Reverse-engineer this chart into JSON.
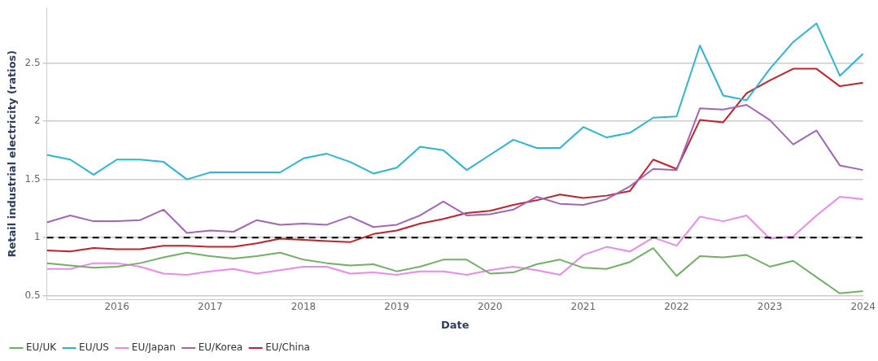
{
  "chart_data": {
    "type": "line",
    "xlabel": "Date",
    "ylabel": "Retail industrial electricity (ratios)",
    "x": [
      "2015-04",
      "2015-07",
      "2015-10",
      "2016-01",
      "2016-04",
      "2016-07",
      "2016-10",
      "2017-01",
      "2017-04",
      "2017-07",
      "2017-10",
      "2018-01",
      "2018-04",
      "2018-07",
      "2018-10",
      "2019-01",
      "2019-04",
      "2019-07",
      "2019-10",
      "2020-01",
      "2020-04",
      "2020-07",
      "2020-10",
      "2021-01",
      "2021-04",
      "2021-07",
      "2021-10",
      "2022-01",
      "2022-04",
      "2022-07",
      "2022-10",
      "2023-01",
      "2023-04",
      "2023-07",
      "2023-10",
      "2024-01"
    ],
    "series": [
      {
        "name": "EU/UK",
        "color": "#72b066",
        "values": [
          0.78,
          0.76,
          0.74,
          0.75,
          0.78,
          0.83,
          0.87,
          0.84,
          0.82,
          0.84,
          0.87,
          0.81,
          0.78,
          0.76,
          0.77,
          0.71,
          0.75,
          0.81,
          0.81,
          0.69,
          0.7,
          0.77,
          0.81,
          0.74,
          0.73,
          0.79,
          0.91,
          0.67,
          0.84,
          0.83,
          0.85,
          0.75,
          0.8,
          0.66,
          0.52,
          0.54
        ]
      },
      {
        "name": "EU/US",
        "color": "#2bb5d6",
        "values": [
          1.71,
          1.67,
          1.54,
          1.67,
          1.67,
          1.65,
          1.5,
          1.56,
          1.56,
          1.56,
          1.56,
          1.68,
          1.72,
          1.65,
          1.55,
          1.6,
          1.78,
          1.75,
          1.58,
          1.71,
          1.84,
          1.77,
          1.77,
          1.95,
          1.86,
          1.9,
          2.03,
          2.04,
          2.65,
          2.22,
          2.18,
          2.45,
          2.68,
          2.84,
          2.39,
          2.58
        ]
      },
      {
        "name": "EU/Japan",
        "color": "#ee88ee",
        "values": [
          0.73,
          0.73,
          0.78,
          0.78,
          0.75,
          0.69,
          0.68,
          0.71,
          0.73,
          0.69,
          0.72,
          0.75,
          0.75,
          0.69,
          0.7,
          0.68,
          0.71,
          0.71,
          0.68,
          0.72,
          0.75,
          0.72,
          0.68,
          0.85,
          0.92,
          0.88,
          1.0,
          0.93,
          1.18,
          1.14,
          1.19,
          0.99,
          1.01,
          1.19,
          1.35,
          1.33
        ]
      },
      {
        "name": "EU/Korea",
        "color": "#a365b8",
        "values": [
          1.13,
          1.19,
          1.14,
          1.14,
          1.15,
          1.24,
          1.04,
          1.06,
          1.05,
          1.15,
          1.11,
          1.12,
          1.11,
          1.18,
          1.09,
          1.11,
          1.19,
          1.31,
          1.19,
          1.2,
          1.24,
          1.35,
          1.29,
          1.28,
          1.33,
          1.44,
          1.59,
          1.58,
          2.11,
          2.1,
          2.14,
          2.01,
          1.8,
          1.92,
          1.62,
          1.58
        ]
      },
      {
        "name": "EU/China",
        "color": "#c8202a",
        "values": [
          0.89,
          0.88,
          0.91,
          0.9,
          0.9,
          0.93,
          0.93,
          0.92,
          0.92,
          0.95,
          0.99,
          0.98,
          0.97,
          0.96,
          1.03,
          1.06,
          1.12,
          1.16,
          1.21,
          1.23,
          1.28,
          1.32,
          1.37,
          1.34,
          1.36,
          1.4,
          1.67,
          1.59,
          2.01,
          1.99,
          2.24,
          2.35,
          2.45,
          2.45,
          2.3,
          2.33
        ]
      }
    ],
    "xlim": [
      "2015-04",
      "2024-01"
    ],
    "xticks": [
      "2016",
      "2017",
      "2018",
      "2019",
      "2020",
      "2021",
      "2022",
      "2023",
      "2024"
    ],
    "ylim": [
      0.47,
      2.97
    ],
    "yticks": [
      0.5,
      1,
      1.5,
      2,
      2.5
    ],
    "ref_lines": [
      {
        "axis": "y",
        "value": 1,
        "color": "#000000",
        "line_style": "dashed"
      }
    ],
    "grid": "y",
    "legend": "bottom left",
    "marker": "none",
    "line_style": "solid"
  }
}
